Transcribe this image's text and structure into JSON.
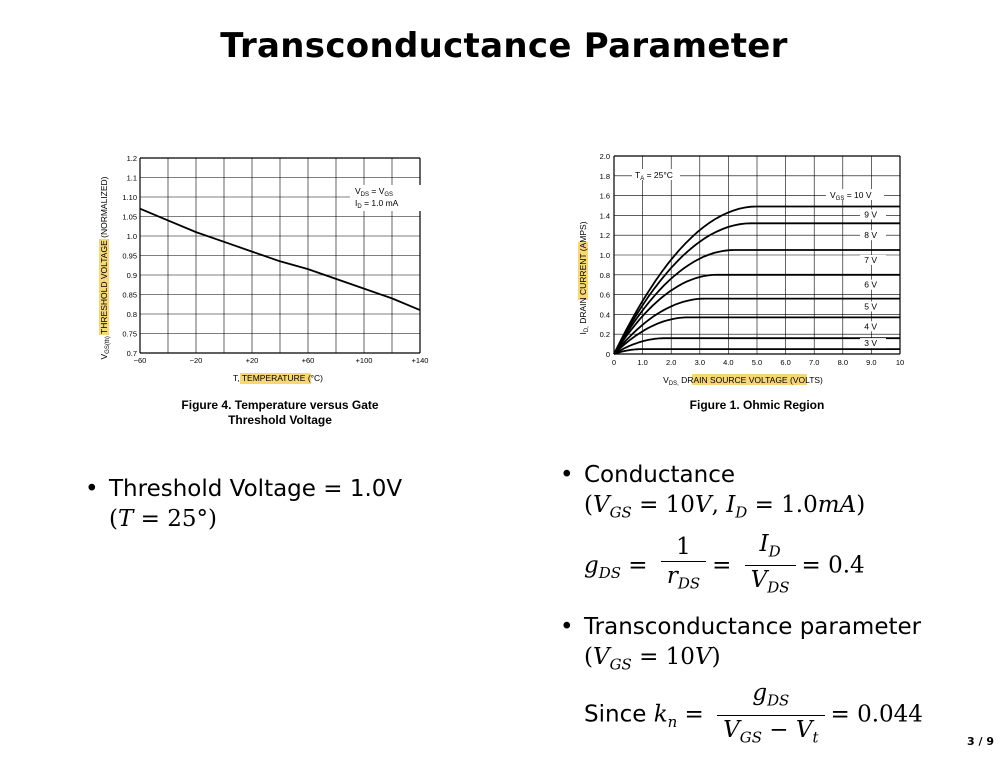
{
  "slide": {
    "title": "Transconductance Parameter",
    "page": "3 / 9"
  },
  "colors": {
    "highlight": "#f7d774",
    "grid": "#000000",
    "line": "#000000"
  },
  "figure_left": {
    "caption_line1": "Figure 4. Temperature versus Gate",
    "caption_line2": "Threshold Voltage",
    "ylabel_prefix": "V",
    "ylabel_sub": "GS(th)",
    "ylabel_highlight": "THRESHOLD VOLTAGE",
    "ylabel_suffix": "(NORMALIZED)",
    "xlabel_prefix": "T,",
    "xlabel_highlight": "TEMPERATURE",
    "xlabel_suffix": "(°C)",
    "annot_line1_a": "V",
    "annot_line1_sub1": "DS",
    "annot_line1_b": " = V",
    "annot_line1_sub2": "GS",
    "annot_line2_a": "I",
    "annot_line2_sub": "D",
    "annot_line2_b": " = 1.0 mA"
  },
  "figure_right": {
    "caption": "Figure 1. Ohmic Region",
    "ylabel_prefix": "I",
    "ylabel_sub": "D,",
    "ylabel_highlight": "DRAIN CURRENT",
    "ylabel_suffix": "(AMPS)",
    "xlabel_prefix": "V",
    "xlabel_sub": "DS,",
    "xlabel_highlight": "DRAIN SOURCE VOLTAGE",
    "xlabel_suffix": "(VOLTS)",
    "temp_a": "T",
    "temp_sub": "A",
    "temp_b": " = 25°C",
    "vgs_prefix": "V",
    "vgs_sub": "GS",
    "vgs_value": " = 10 V"
  },
  "chart_data": [
    {
      "type": "line",
      "x_ticks": [
        "−60",
        "−20",
        "+20",
        "+60",
        "+100",
        "+140"
      ],
      "y_ticks": [
        "0.7",
        "0.75",
        "0.8",
        "0.85",
        "0.9",
        "0.95",
        "1.0",
        "1.05",
        "1.10",
        "1.1",
        "1.2"
      ],
      "xlim": [
        -60,
        140
      ],
      "ylim": [
        0.7,
        1.2
      ],
      "grid": true,
      "series": [
        {
          "x": [
            -60,
            -40,
            -20,
            0,
            20,
            40,
            60,
            80,
            100,
            120,
            140
          ],
          "y": [
            1.07,
            1.04,
            1.01,
            0.985,
            0.96,
            0.935,
            0.915,
            0.89,
            0.865,
            0.84,
            0.81
          ]
        }
      ]
    },
    {
      "type": "line",
      "x_ticks": [
        "0",
        "1.0",
        "2.0",
        "3.0",
        "4.0",
        "5.0",
        "6.0",
        "7.0",
        "8.0",
        "9.0",
        "10"
      ],
      "y_ticks": [
        "0",
        "0.2",
        "0.4",
        "0.6",
        "0.8",
        "1.0",
        "1.2",
        "1.4",
        "1.6",
        "1.8",
        "2.0"
      ],
      "xlim": [
        0,
        10
      ],
      "ylim": [
        0,
        2.0
      ],
      "grid": true,
      "curve_labels": [
        "9 V",
        "8 V",
        "7 V",
        "6 V",
        "5 V",
        "4 V",
        "3 V"
      ],
      "series": [
        {
          "name": "10 V",
          "sat_x": 5.0,
          "sat_y": 1.49
        },
        {
          "name": "9 V",
          "sat_x": 4.8,
          "sat_y": 1.32
        },
        {
          "name": "8 V",
          "sat_x": 4.2,
          "sat_y": 1.05
        },
        {
          "name": "7 V",
          "sat_x": 3.6,
          "sat_y": 0.8
        },
        {
          "name": "6 V",
          "sat_x": 3.2,
          "sat_y": 0.56
        },
        {
          "name": "5 V",
          "sat_x": 2.6,
          "sat_y": 0.37
        },
        {
          "name": "4 V",
          "sat_x": 1.8,
          "sat_y": 0.16
        },
        {
          "name": "3 V",
          "sat_x": 1.0,
          "sat_y": 0.05
        }
      ]
    }
  ],
  "bullets_left": {
    "b1_text": "Threshold Voltage = 1.0V",
    "b1_math": "(T = 25°)"
  },
  "bullets_right": {
    "b1_title": "Conductance",
    "b1_cond": "(VGS = 10V, ID = 1.0mA)",
    "g_lhs": "gDS =",
    "frac1_num": "1",
    "frac1_den": "rDS",
    "frac2_num": "ID",
    "frac2_den": "VDS",
    "g_result": "= 0.4",
    "b2_title": "Transconductance parameter",
    "b2_cond": "(VGS = 10V)",
    "since": "Since",
    "kn_lhs": "kn =",
    "frac3_num": "gDS",
    "frac3_den": "VGS − Vt",
    "kn_result": "= 0.044"
  }
}
